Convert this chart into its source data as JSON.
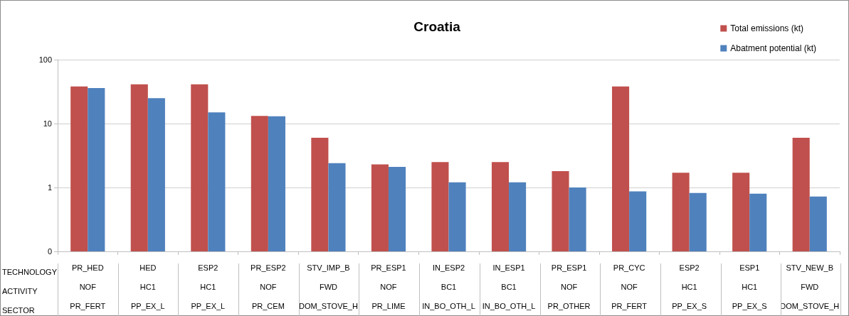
{
  "chart_data": {
    "type": "bar",
    "title": "Croatia",
    "categories": [
      "PR_HED\nNOF\nPR_FERT",
      "HED\nHC1\nPP_EX_L",
      "ESP2\nHC1\nPP_EX_L",
      "PR_ESP2\nNOF\nPR_CEM",
      "STV_IMP_B\nFWD\nDOM_STOVE_H",
      "PR_ESP1\nNOF\nPR_LIME",
      "IN_ESP2\nBC1\nIN_BO_OTH_L",
      "IN_ESP1\nBC1\nIN_BO_OTH_L",
      "PR_ESP1\nNOF\nPR_OTHER",
      "PR_CYC\nNOF\nPR_FERT",
      "ESP2\nHC1\nPP_EX_S",
      "ESP1\nHC1\nPP_EX_S",
      "STV_NEW_B\nFWD\nDOM_STOVE_H"
    ],
    "series": [
      {
        "name": "Total emissions (kt)",
        "color": "#c0504d",
        "values": [
          38,
          41,
          41,
          13.2,
          6,
          2.3,
          2.5,
          2.5,
          1.8,
          38,
          1.7,
          1.7,
          6
        ]
      },
      {
        "name": "Abatment potential (kt)",
        "color": "#4f81bd",
        "values": [
          36,
          25,
          15,
          13,
          2.4,
          2.1,
          1.2,
          1.2,
          1,
          0.87,
          0.82,
          0.8,
          0.72
        ]
      }
    ],
    "annotations": [
      "TECHNOLOGY",
      "ACTIVITY",
      "SECTOR"
    ],
    "log": "y",
    "ylim": [
      0.1,
      100
    ],
    "yticks": [
      {
        "value": 0.1,
        "label": "0"
      },
      1,
      10,
      100
    ],
    "grid": "y",
    "legend": "top right"
  }
}
